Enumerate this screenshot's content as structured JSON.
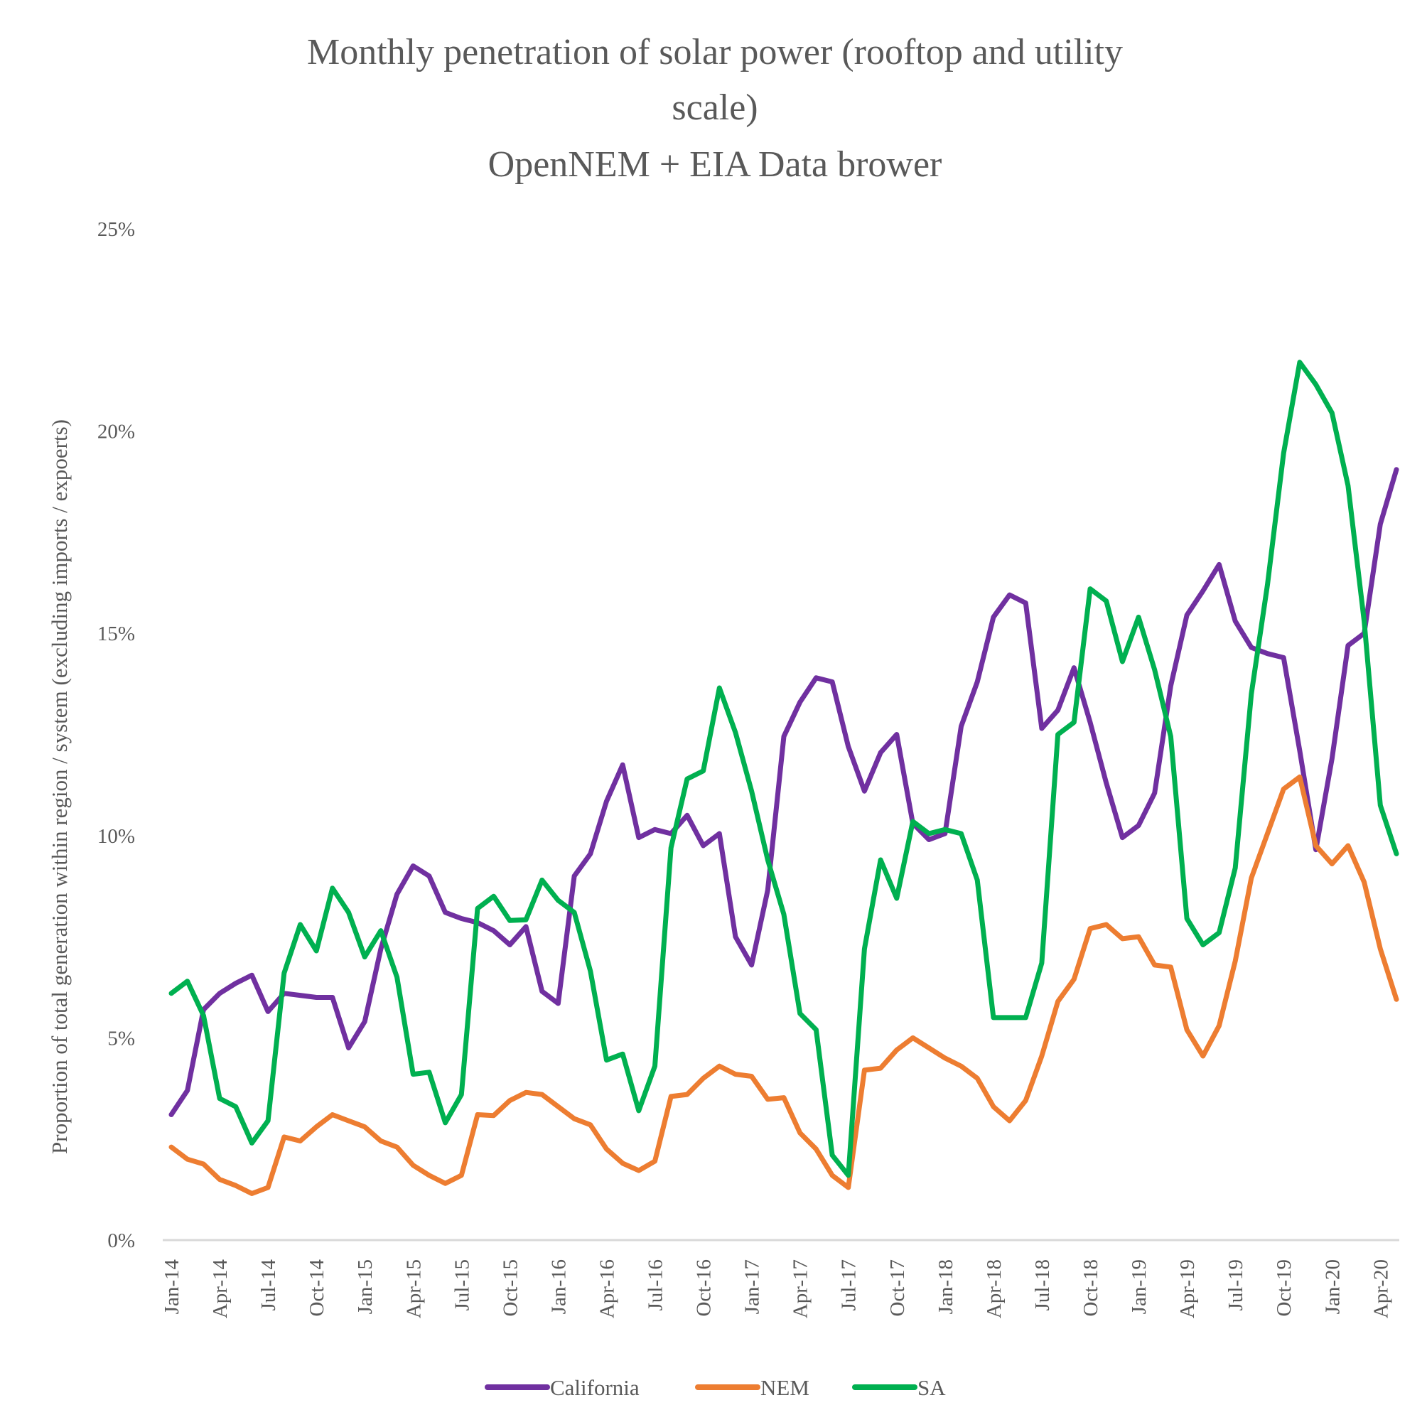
{
  "chart_data": {
    "type": "line",
    "title": [
      "Monthly penetration of solar power (rooftop and utility",
      "scale)",
      "OpenNEM + EIA Data brower"
    ],
    "xlabel": "",
    "ylabel": "Proportion of total generation within region / system (excluding imports / expoerts)",
    "ylim": [
      0,
      25
    ],
    "y_ticks": [
      "0%",
      "5%",
      "10%",
      "15%",
      "20%",
      "25%"
    ],
    "y_tick_values": [
      0,
      5,
      10,
      15,
      20,
      25
    ],
    "x_start": "Jan-14",
    "x_end": "May-20",
    "x_ticks": [
      "Jan-14",
      "Apr-14",
      "Jul-14",
      "Oct-14",
      "Jan-15",
      "Apr-15",
      "Jul-15",
      "Oct-15",
      "Jan-16",
      "Apr-16",
      "Jul-16",
      "Oct-16",
      "Jan-17",
      "Apr-17",
      "Jul-17",
      "Oct-17",
      "Jan-18",
      "Apr-18",
      "Jul-18",
      "Oct-18",
      "Jan-19",
      "Apr-19",
      "Jul-19",
      "Oct-19",
      "Jan-20",
      "Apr-20"
    ],
    "grid": false,
    "legend": "bottom",
    "series": [
      {
        "name": "California",
        "color": "#7030A0",
        "values": [
          3.1,
          3.7,
          5.7,
          6.1,
          6.35,
          6.55,
          5.65,
          6.1,
          6.05,
          6.0,
          6.0,
          4.75,
          5.4,
          7.2,
          8.55,
          9.25,
          9.0,
          8.1,
          7.95,
          7.85,
          7.65,
          7.3,
          7.75,
          6.15,
          5.85,
          9.0,
          9.55,
          10.85,
          11.75,
          9.95,
          10.15,
          10.05,
          10.5,
          9.75,
          10.05,
          7.5,
          6.8,
          8.65,
          12.45,
          13.3,
          13.9,
          13.8,
          12.2,
          11.1,
          12.05,
          12.5,
          10.3,
          9.9,
          10.05,
          12.7,
          13.8,
          15.4,
          15.95,
          15.75,
          12.65,
          13.1,
          14.15,
          12.8,
          11.3,
          9.95,
          10.25,
          11.05,
          13.7,
          15.45,
          16.05,
          16.7,
          15.3,
          14.65,
          14.5,
          14.4,
          12.1,
          9.65,
          11.9,
          14.7,
          15.0,
          17.7,
          19.05
        ]
      },
      {
        "name": "NEM",
        "color": "#ED7D31",
        "values": [
          2.3,
          2.0,
          1.88,
          1.5,
          1.35,
          1.15,
          1.3,
          2.55,
          2.45,
          2.8,
          3.1,
          2.95,
          2.8,
          2.45,
          2.3,
          1.85,
          1.6,
          1.4,
          1.6,
          3.1,
          3.08,
          3.45,
          3.65,
          3.6,
          3.3,
          3.0,
          2.85,
          2.25,
          1.9,
          1.72,
          1.95,
          3.55,
          3.6,
          4.0,
          4.3,
          4.1,
          4.05,
          3.48,
          3.52,
          2.65,
          2.25,
          1.6,
          1.3,
          4.2,
          4.25,
          4.7,
          5.0,
          4.75,
          4.5,
          4.3,
          4.0,
          3.3,
          2.95,
          3.45,
          4.55,
          5.9,
          6.45,
          7.7,
          7.8,
          7.45,
          7.5,
          6.8,
          6.75,
          5.2,
          4.55,
          5.3,
          6.9,
          8.95,
          10.05,
          11.15,
          11.45,
          9.75,
          9.3,
          9.75,
          8.85,
          7.2,
          5.95
        ]
      },
      {
        "name": "SA",
        "color": "#00B050",
        "values": [
          6.1,
          6.4,
          5.55,
          3.5,
          3.3,
          2.4,
          2.95,
          6.6,
          7.8,
          7.15,
          8.7,
          8.1,
          7.0,
          7.65,
          6.5,
          4.1,
          4.15,
          2.9,
          3.6,
          8.2,
          8.5,
          7.9,
          7.92,
          8.9,
          8.4,
          8.1,
          6.65,
          4.45,
          4.6,
          3.2,
          4.3,
          9.7,
          11.4,
          11.6,
          13.65,
          12.55,
          11.1,
          9.4,
          8.05,
          5.6,
          5.2,
          2.1,
          1.6,
          7.2,
          9.4,
          8.45,
          10.35,
          10.05,
          10.15,
          10.05,
          8.9,
          5.5,
          5.5,
          5.5,
          6.85,
          12.5,
          12.8,
          16.1,
          15.8,
          14.3,
          15.4,
          14.1,
          12.45,
          7.95,
          7.3,
          7.6,
          9.2,
          13.5,
          16.2,
          19.45,
          21.7,
          21.15,
          20.45,
          18.65,
          15.3,
          10.75,
          9.55
        ]
      }
    ]
  }
}
